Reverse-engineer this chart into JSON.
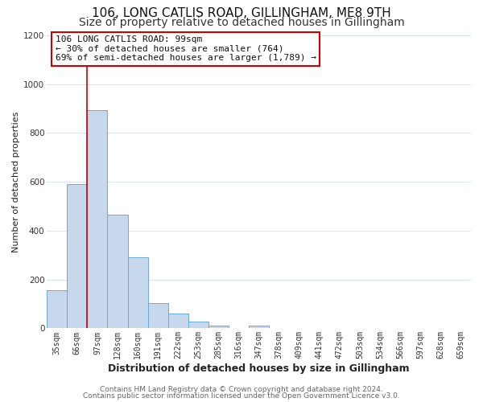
{
  "title": "106, LONG CATLIS ROAD, GILLINGHAM, ME8 9TH",
  "subtitle": "Size of property relative to detached houses in Gillingham",
  "xlabel": "Distribution of detached houses by size in Gillingham",
  "ylabel": "Number of detached properties",
  "bin_labels": [
    "35sqm",
    "66sqm",
    "97sqm",
    "128sqm",
    "160sqm",
    "191sqm",
    "222sqm",
    "253sqm",
    "285sqm",
    "316sqm",
    "347sqm",
    "378sqm",
    "409sqm",
    "441sqm",
    "472sqm",
    "503sqm",
    "534sqm",
    "566sqm",
    "597sqm",
    "628sqm",
    "659sqm"
  ],
  "bin_values": [
    155,
    590,
    895,
    465,
    290,
    105,
    60,
    28,
    12,
    0,
    10,
    0,
    0,
    0,
    0,
    0,
    0,
    0,
    0,
    0,
    0
  ],
  "bar_color": "#c8d8ec",
  "bar_edge_color": "#6aaad4",
  "red_line_bin_index": 2,
  "annotation_line1": "106 LONG CATLIS ROAD: 99sqm",
  "annotation_line2": "← 30% of detached houses are smaller (764)",
  "annotation_line3": "69% of semi-detached houses are larger (1,789) →",
  "annotation_box_facecolor": "#ffffff",
  "annotation_box_edgecolor": "#cc0000",
  "ylim": [
    0,
    1200
  ],
  "yticks": [
    0,
    200,
    400,
    600,
    800,
    1000,
    1200
  ],
  "footer_line1": "Contains HM Land Registry data © Crown copyright and database right 2024.",
  "footer_line2": "Contains public sector information licensed under the Open Government Licence v3.0.",
  "bg_color": "#ffffff",
  "grid_color": "#d8e4f0",
  "title_fontsize": 11,
  "subtitle_fontsize": 10,
  "xlabel_fontsize": 9,
  "ylabel_fontsize": 8,
  "tick_fontsize": 7,
  "annotation_fontsize": 8,
  "footer_fontsize": 6.5
}
